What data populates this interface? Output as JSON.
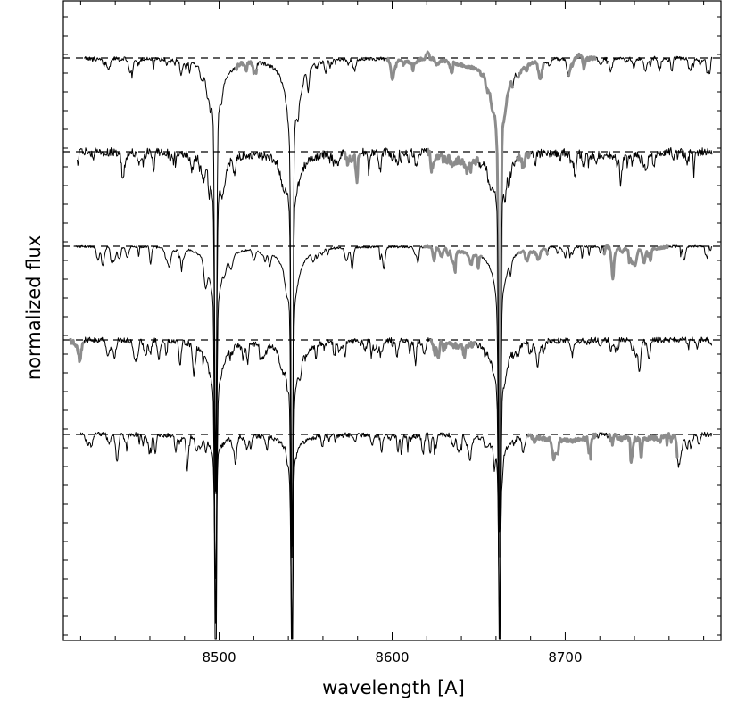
{
  "chart_data": {
    "type": "line",
    "title": "",
    "xlabel": "wavelength [A]",
    "ylabel": "normalized flux",
    "xlim": [
      8410,
      8790
    ],
    "x_ticks": [
      8500,
      8600,
      8700
    ],
    "x_tick_labels": [
      "8500",
      "8600",
      "8700"
    ],
    "y_tick_labels_shown": false,
    "grid": false,
    "legend": "none",
    "spectra_offset_style": "stacked, each normalized to a dashed continuum level",
    "series": [
      {
        "x_range": [
          8422,
          8785
        ],
        "depth_scale": 0.8,
        "noise": 0.35,
        "gray_segments": [
          [
            8509,
            8522
          ],
          [
            8597,
            8620
          ],
          [
            8620,
            8670
          ],
          [
            8672,
            8688
          ],
          [
            8702,
            8718
          ]
        ],
        "bump_segments": [
          [
            8600,
            8618,
            -0.35
          ],
          [
            8619,
            8622,
            0.7
          ],
          [
            8623,
            8690,
            -0.55
          ],
          [
            8706,
            8712,
            0.35
          ]
        ]
      },
      {
        "x_range": [
          8418,
          8785
        ],
        "depth_scale": 1.0,
        "noise": 0.8,
        "gray_segments": [
          [
            8572,
            8582
          ],
          [
            8620,
            8650
          ],
          [
            8672,
            8680
          ]
        ],
        "bump_segments": [
          [
            8572,
            8582,
            -0.6
          ],
          [
            8620,
            8655,
            -0.75
          ],
          [
            8700,
            8760,
            -0.4
          ]
        ]
      },
      {
        "x_range": [
          8416,
          8785
        ],
        "depth_scale": 0.85,
        "noise": 0.2,
        "gray_segments": [
          [
            8618,
            8652
          ],
          [
            8672,
            8690
          ],
          [
            8722,
            8760
          ]
        ],
        "bump_segments": [
          [
            8630,
            8660,
            -0.45
          ],
          [
            8675,
            8690,
            -0.35
          ],
          [
            8725,
            8760,
            -0.35
          ]
        ]
      },
      {
        "x_range": [
          8414,
          8785
        ],
        "depth_scale": 1.1,
        "noise": 0.55,
        "gray_segments": [
          [
            8414,
            8422
          ],
          [
            8622,
            8648
          ]
        ],
        "bump_segments": [
          [
            8414,
            8422,
            -0.5
          ],
          [
            8625,
            8648,
            -0.45
          ]
        ]
      },
      {
        "x_range": [
          8420,
          8785
        ],
        "depth_scale": 1.25,
        "noise": 0.45,
        "gray_segments": [
          [
            8678,
            8718
          ],
          [
            8725,
            8765
          ]
        ],
        "bump_segments": [
          [
            8595,
            8620,
            -0.2
          ],
          [
            8680,
            8720,
            -0.6
          ],
          [
            8725,
            8760,
            -0.5
          ]
        ]
      }
    ],
    "strong_lines_A": [
      8498.0,
      8542.1,
      8662.1
    ],
    "colors": {
      "spectrum": "#000000",
      "highlight": "#8c8c8c",
      "continuum": "#000000"
    }
  }
}
